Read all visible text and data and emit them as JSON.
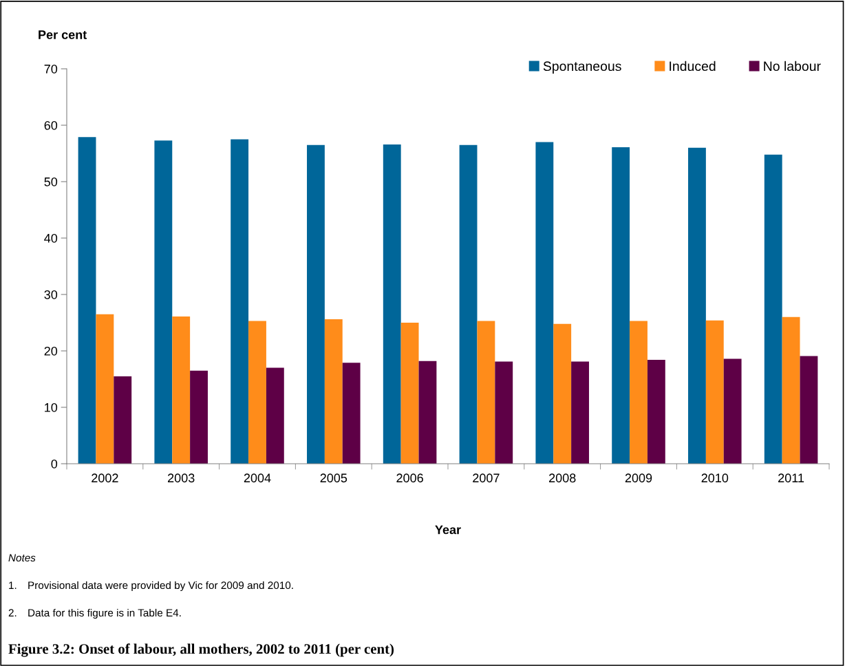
{
  "chart_data": {
    "type": "bar",
    "title": "Figure 3.2: Onset of labour, all mothers, 2002 to 2011 (per cent)",
    "xlabel": "Year",
    "ylabel": "Per cent",
    "categories": [
      "2002",
      "2003",
      "2004",
      "2005",
      "2006",
      "2007",
      "2008",
      "2009",
      "2010",
      "2011"
    ],
    "series": [
      {
        "name": "Spontaneous",
        "color": "#006699",
        "values": [
          57.9,
          57.3,
          57.5,
          56.5,
          56.6,
          56.5,
          57.0,
          56.1,
          56.0,
          54.8
        ]
      },
      {
        "name": "Induced",
        "color": "#ff8c1a",
        "values": [
          26.5,
          26.1,
          25.3,
          25.6,
          25.0,
          25.3,
          24.8,
          25.3,
          25.4,
          26.0
        ]
      },
      {
        "name": "No labour",
        "color": "#5e0046",
        "values": [
          15.5,
          16.5,
          17.0,
          17.9,
          18.2,
          18.1,
          18.1,
          18.4,
          18.6,
          19.1
        ]
      }
    ],
    "ylim": [
      0,
      70
    ],
    "yticks": [
      0,
      10,
      20,
      30,
      40,
      50,
      60,
      70
    ],
    "grid": false,
    "legend": "top right",
    "annotations": [
      "Notes",
      "1. Provisional data were provided by Vic for 2009 and 2010.",
      "2. Data for this figure is in Table E4."
    ]
  }
}
